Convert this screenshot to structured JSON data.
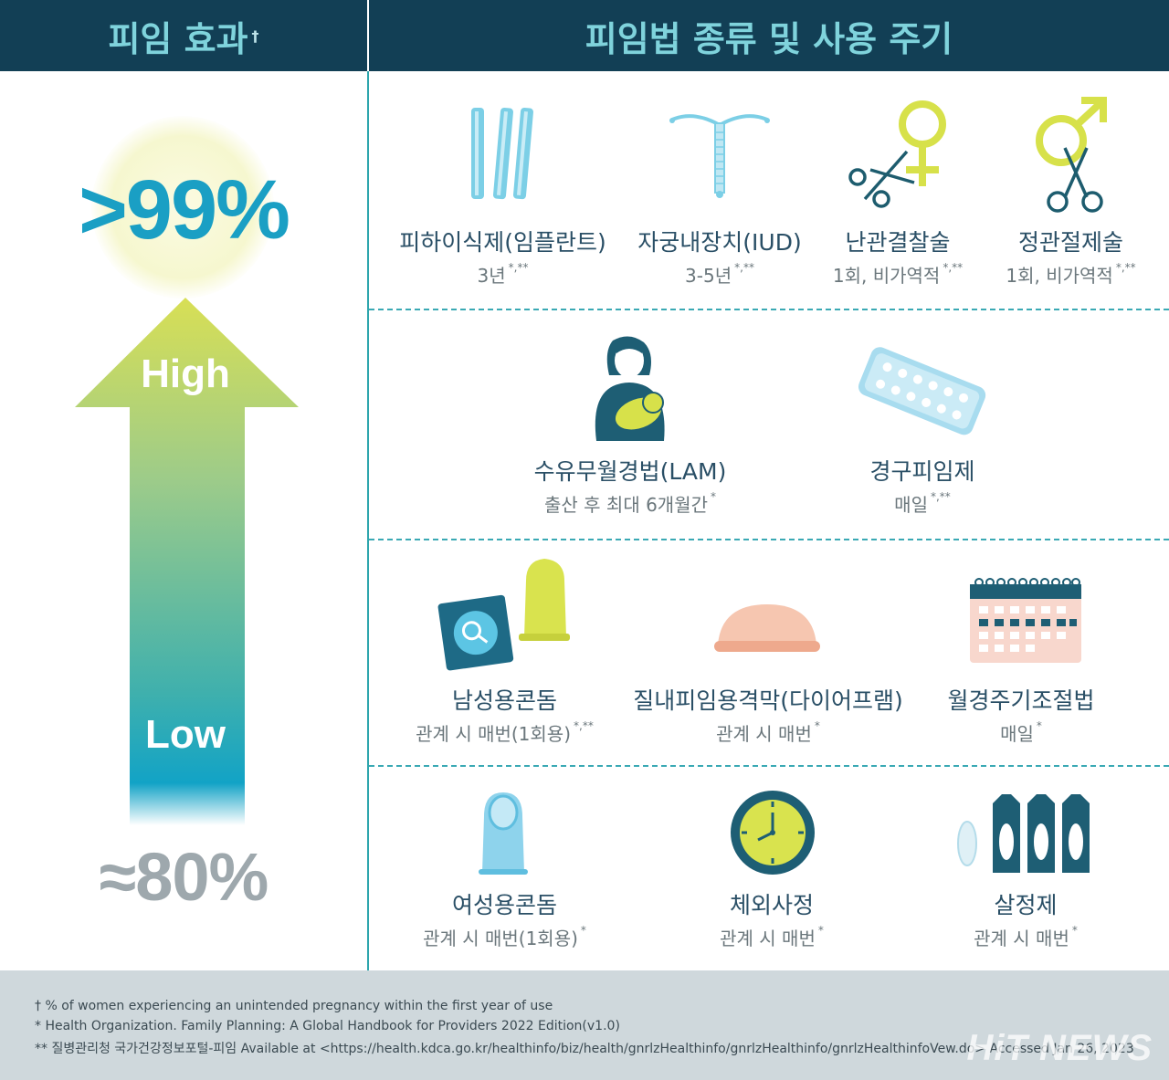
{
  "header": {
    "left_title": "피임 효과",
    "left_mark": "†",
    "right_title": "피임법 종류 및 사용 주기"
  },
  "effect": {
    "high_pct": ">99%",
    "high_label": "High",
    "low_label": "Low",
    "low_pct": "≈80%",
    "colors": {
      "top": "#d6dd55",
      "mid": "#7cbf9a",
      "bottom": "#19a3c3"
    }
  },
  "methods": {
    "implant": {
      "name": "피하이식제(임플란트)",
      "cycle": "3년",
      "ref": "*,**",
      "icon": "implant-rods-icon"
    },
    "iud": {
      "name": "자궁내장치(IUD)",
      "cycle": "3-5년",
      "ref": "*,**",
      "icon": "iud-icon"
    },
    "tubal": {
      "name": "난관결찰술",
      "cycle": "1회, 비가역적",
      "ref": "*,**",
      "icon": "female-scissors-icon"
    },
    "vasectomy": {
      "name": "정관절제술",
      "cycle": "1회, 비가역적",
      "ref": "*,**",
      "icon": "male-scissors-icon"
    },
    "lam": {
      "name": "수유무월경법(LAM)",
      "cycle": "출산 후 최대 6개월간",
      "ref": "*",
      "icon": "breastfeeding-icon"
    },
    "pill": {
      "name": "경구피임제",
      "cycle": "매일",
      "ref": "*,**",
      "icon": "pill-pack-icon"
    },
    "male_condom": {
      "name": "남성용콘돔",
      "cycle": "관계 시 매번(1회용)",
      "ref": "*,**",
      "icon": "male-condom-icon"
    },
    "diaphragm": {
      "name": "질내피임용격막(다이어프램)",
      "cycle": "관계 시 매번",
      "ref": "*",
      "icon": "diaphragm-icon"
    },
    "calendar": {
      "name": "월경주기조절법",
      "cycle": "매일",
      "ref": "*",
      "icon": "calendar-icon"
    },
    "female_condom": {
      "name": "여성용콘돔",
      "cycle": "관계 시 매번(1회용)",
      "ref": "*",
      "icon": "female-condom-icon"
    },
    "withdrawal": {
      "name": "체외사정",
      "cycle": "관계 시 매번",
      "ref": "*",
      "icon": "clock-icon"
    },
    "spermicide": {
      "name": "살정제",
      "cycle": "관계 시 매번",
      "ref": "*",
      "icon": "spermicide-icon"
    }
  },
  "footer": {
    "line1": "† % of women experiencing an unintended pregnancy within the first year of use",
    "line2": "* Health Organization. Family Planning: A Global Handbook for Providers 2022 Edition(v1.0)",
    "line3": "** 질병관리청 국가건강정보포털-피임 Available at <https://health.kdca.go.kr/healthinfo/biz/health/gnrlzHealthinfo/gnrlzHealthinfo/gnrlzHealthinfoVew.do> Accessed Jan 26, 2023",
    "watermark": "HiT NEWS"
  }
}
